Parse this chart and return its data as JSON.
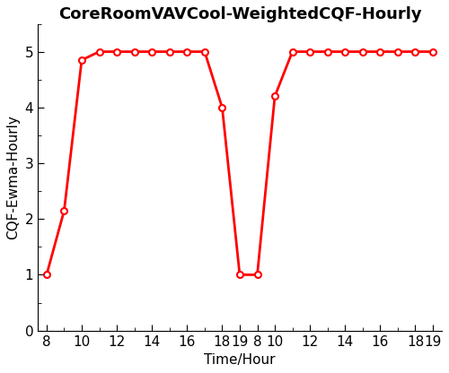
{
  "title": "CoreRoomVAVCool-WeightedCQF-Hourly",
  "xlabel": "Time/Hour",
  "ylabel": "CQF-Ewma-Hourly",
  "xlim": [
    7.5,
    30.5
  ],
  "ylim": [
    0,
    5.5
  ],
  "yticks": [
    0,
    1,
    2,
    3,
    4,
    5
  ],
  "x": [
    8,
    9,
    10,
    11,
    12,
    13,
    14,
    15,
    16,
    17,
    18,
    19,
    20,
    21,
    22,
    23,
    24,
    25,
    26,
    27,
    28,
    29,
    30
  ],
  "y": [
    1.0,
    2.15,
    4.85,
    5.0,
    5.0,
    5.0,
    5.0,
    5.0,
    5.0,
    5.0,
    4.0,
    1.0,
    1.0,
    4.2,
    5.0,
    5.0,
    5.0,
    5.0,
    5.0,
    5.0,
    5.0,
    5.0,
    5.0
  ],
  "day1_tick_pos": [
    8,
    10,
    12,
    14,
    16,
    18,
    19
  ],
  "day1_tick_labels": [
    "8",
    "10",
    "12",
    "14",
    "16",
    "18",
    "19"
  ],
  "day2_tick_pos": [
    20,
    21,
    23,
    25,
    27,
    29,
    30
  ],
  "day2_tick_labels": [
    "8",
    "10",
    "12",
    "14",
    "16",
    "18",
    "19"
  ],
  "line_color": "#FF0000",
  "marker": "o",
  "marker_facecolor": "white",
  "marker_edgecolor": "#FF0000",
  "marker_size": 5,
  "linewidth": 2.0,
  "title_fontsize": 13,
  "label_fontsize": 11,
  "tick_fontsize": 11,
  "background_color": "#ffffff"
}
